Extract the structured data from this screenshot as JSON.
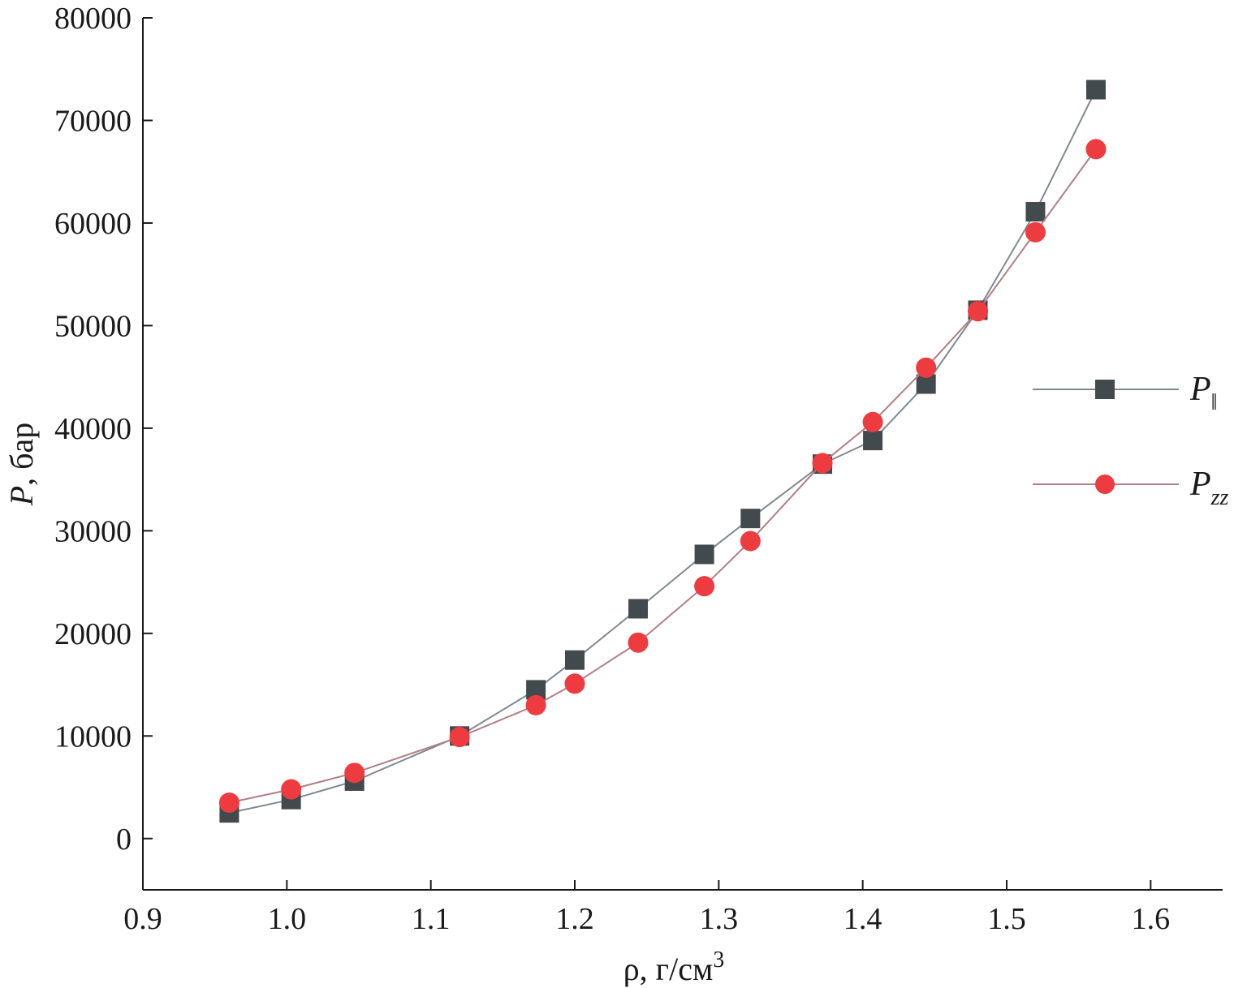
{
  "chart_data": {
    "type": "line",
    "title": "",
    "xlabel": {
      "prefix": "ρ, г/см",
      "superscript": "3"
    },
    "ylabel": {
      "symbol": "P",
      "unit": ", бар"
    },
    "xlim": [
      0.9,
      1.65
    ],
    "ylim": [
      -5000,
      80000
    ],
    "xticks": [
      0.9,
      1.0,
      1.1,
      1.2,
      1.3,
      1.4,
      1.5,
      1.6
    ],
    "xtick_labels": [
      "0.9",
      "1.0",
      "1.1",
      "1.2",
      "1.3",
      "1.4",
      "1.5",
      "1.6"
    ],
    "yticks": [
      0,
      10000,
      20000,
      30000,
      40000,
      50000,
      60000,
      70000,
      80000
    ],
    "ytick_labels": [
      "0",
      "10000",
      "20000",
      "30000",
      "40000",
      "50000",
      "60000",
      "70000",
      "80000"
    ],
    "grid": false,
    "legend_position": "right",
    "series": [
      {
        "name": {
          "symbol": "P",
          "subscript": "‖"
        },
        "marker": "square",
        "color": "#434a4e",
        "line_color": "#7d8a90",
        "x": [
          0.96,
          1.003,
          1.047,
          1.12,
          1.173,
          1.2,
          1.244,
          1.29,
          1.322,
          1.372,
          1.407,
          1.444,
          1.48,
          1.52,
          1.562
        ],
        "y": [
          2500,
          3800,
          5600,
          10000,
          14500,
          17400,
          22400,
          27700,
          31200,
          36500,
          38800,
          44300,
          51500,
          61100,
          73000
        ]
      },
      {
        "name": {
          "symbol": "P",
          "subscript": "zz"
        },
        "marker": "circle",
        "color": "#ee3b3f",
        "line_color": "#b07f86",
        "x": [
          0.96,
          1.003,
          1.047,
          1.12,
          1.173,
          1.2,
          1.244,
          1.29,
          1.322,
          1.372,
          1.407,
          1.444,
          1.48,
          1.52,
          1.562
        ],
        "y": [
          3500,
          4800,
          6400,
          9900,
          13000,
          15100,
          19100,
          24600,
          29000,
          36600,
          40600,
          45900,
          51400,
          59100,
          67200
        ]
      }
    ]
  }
}
